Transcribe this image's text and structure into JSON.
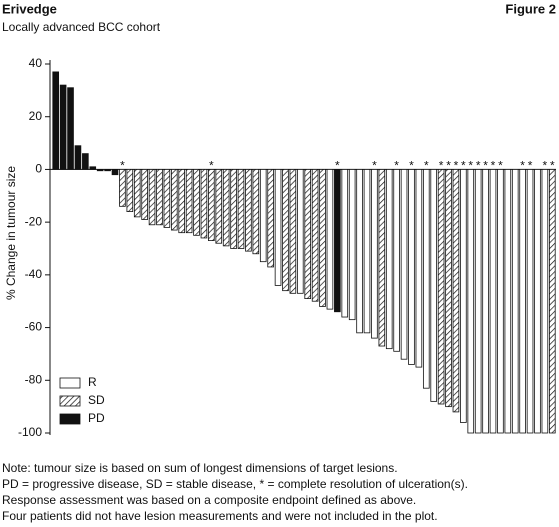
{
  "chart_data": {
    "type": "waterfall",
    "title": "Erivedge",
    "figure_label": "Figure 2",
    "subtitle": "Locally advanced BCC cohort",
    "y_label": "% Change in tumour size",
    "ylim": [
      -100,
      40
    ],
    "yticks": [
      -100,
      -80,
      -60,
      -40,
      -20,
      0,
      20,
      40
    ],
    "values": [
      37,
      32,
      31,
      9,
      6,
      1,
      -0.5,
      -0.5,
      -2,
      -14,
      -16,
      -18,
      -19,
      -21,
      -21,
      -22,
      -23,
      -24,
      -24,
      -25,
      -26,
      -27,
      -28,
      -29,
      -30,
      -30,
      -31,
      -32,
      -35,
      -37,
      -44,
      -46,
      -47,
      -47,
      -49,
      -50,
      -52,
      -53,
      -54,
      -56,
      -57,
      -62,
      -62,
      -64,
      -67,
      -68,
      -69,
      -72,
      -74,
      -75,
      -83,
      -88,
      -89,
      -90,
      -92,
      -96,
      -100,
      -100,
      -100,
      -100,
      -100,
      -100,
      -100,
      -100,
      -100,
      -100,
      -100,
      -100
    ],
    "response": [
      "PD",
      "PD",
      "PD",
      "PD",
      "PD",
      "PD",
      "PD",
      "PD",
      "PD",
      "SD",
      "SD",
      "SD",
      "SD",
      "SD",
      "SD",
      "SD",
      "SD",
      "SD",
      "SD",
      "SD",
      "SD",
      "SD",
      "SD",
      "SD",
      "SD",
      "SD",
      "SD",
      "SD",
      "R",
      "SD",
      "R",
      "SD",
      "SD",
      "R",
      "SD",
      "SD",
      "SD",
      "R",
      "PD",
      "R",
      "R",
      "R",
      "R",
      "R",
      "SD",
      "R",
      "R",
      "R",
      "R",
      "R",
      "R",
      "R",
      "SD",
      "SD",
      "SD",
      "R",
      "R",
      "R",
      "R",
      "R",
      "R",
      "R",
      "R",
      "R",
      "R",
      "R",
      "R",
      "SD"
    ],
    "annotations": [
      null,
      null,
      null,
      null,
      null,
      null,
      null,
      null,
      null,
      "*",
      null,
      null,
      null,
      null,
      null,
      null,
      null,
      null,
      null,
      null,
      null,
      "*",
      null,
      null,
      null,
      null,
      null,
      null,
      null,
      null,
      null,
      null,
      null,
      null,
      null,
      null,
      null,
      null,
      "*",
      null,
      null,
      null,
      null,
      "*",
      null,
      null,
      "*",
      null,
      "*",
      null,
      "*",
      null,
      "*",
      "*",
      "*",
      "*",
      "*",
      "*",
      "*",
      "*",
      "*",
      null,
      null,
      "*",
      "*",
      null,
      "*",
      "*"
    ],
    "legend": [
      {
        "name": "R",
        "style": "open"
      },
      {
        "name": "SD",
        "style": "hatched"
      },
      {
        "name": "PD",
        "style": "solid"
      }
    ],
    "legend_position": "lower left",
    "color": "#111111",
    "notes": [
      "Note: tumour size is based on sum of longest dimensions of target lesions.",
      "PD = progressive disease, SD = stable disease, * = complete resolution of ulceration(s).",
      "Response assessment was based on a composite endpoint defined as above.",
      "Four patients did not have lesion measurements and were not included in the plot."
    ]
  }
}
